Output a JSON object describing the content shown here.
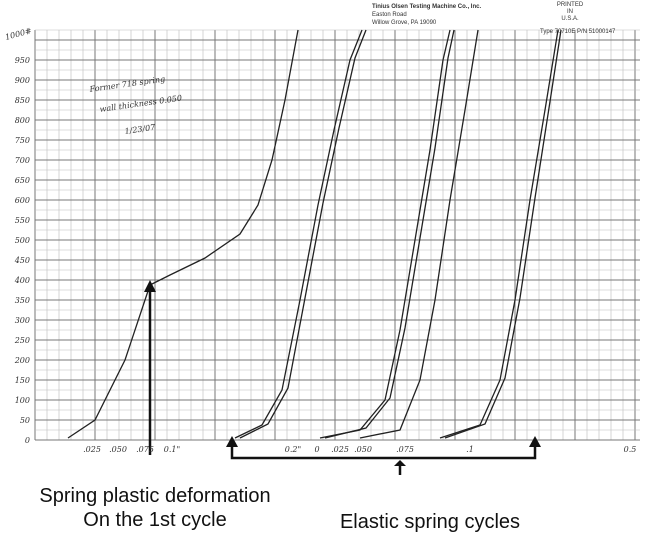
{
  "header": {
    "company": "Tinius Olsen Testing Machine Co., Inc.",
    "address": "Easton Road",
    "city": "Willow Grove, PA  19090",
    "printed": [
      "PRINTED",
      "IN",
      "U.S.A."
    ],
    "type": "Type 70710E  P/N 51000147"
  },
  "handwriting": {
    "top_label": "1000#",
    "notes": [
      "Former 718 spring",
      "wall thickness 0.050",
      "1/23/07"
    ],
    "y_labels": [
      "950",
      "900",
      "850",
      "800",
      "750",
      "700",
      "650",
      "600",
      "550",
      "500",
      "450",
      "400",
      "350",
      "300",
      "250",
      "200",
      "150",
      "100",
      "50",
      "0"
    ],
    "x_labels": [
      ".025",
      ".050",
      ".075",
      "0.1\"",
      "0.2\"",
      "0",
      ".025",
      ".050",
      ".075",
      ".1",
      "0.5"
    ]
  },
  "annotations": {
    "plastic": [
      "Spring plastic deformation",
      "On the 1st cycle"
    ],
    "elastic": "Elastic spring cycles"
  }
}
